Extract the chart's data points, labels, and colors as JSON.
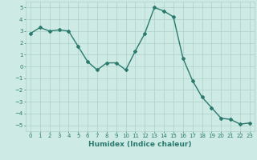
{
  "x": [
    0,
    1,
    2,
    3,
    4,
    5,
    6,
    7,
    8,
    9,
    10,
    11,
    12,
    13,
    14,
    15,
    16,
    17,
    18,
    19,
    20,
    21,
    22,
    23
  ],
  "y": [
    2.8,
    3.3,
    3.0,
    3.1,
    3.0,
    1.7,
    0.4,
    -0.3,
    0.3,
    0.3,
    -0.3,
    1.3,
    2.8,
    5.0,
    4.7,
    4.2,
    0.7,
    -1.2,
    -2.6,
    -3.5,
    -4.4,
    -4.5,
    -4.9,
    -4.8
  ],
  "line_color": "#2a7a6e",
  "marker": "D",
  "markersize": 2.0,
  "linewidth": 1.0,
  "xlabel": "Humidex (Indice chaleur)",
  "xlim": [
    -0.5,
    23.5
  ],
  "ylim": [
    -5.5,
    5.5
  ],
  "yticks": [
    -5,
    -4,
    -3,
    -2,
    -1,
    0,
    1,
    2,
    3,
    4,
    5
  ],
  "xticks": [
    0,
    1,
    2,
    3,
    4,
    5,
    6,
    7,
    8,
    9,
    10,
    11,
    12,
    13,
    14,
    15,
    16,
    17,
    18,
    19,
    20,
    21,
    22,
    23
  ],
  "bg_color": "#ceeae4",
  "grid_color": "#aecfca",
  "tick_fontsize": 5.0,
  "xlabel_fontsize": 6.5,
  "tick_color": "#2a7a6e"
}
